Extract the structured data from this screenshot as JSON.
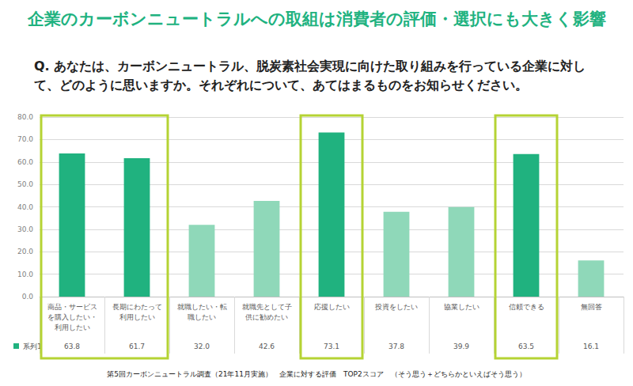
{
  "chart_data": {
    "type": "bar",
    "title": "企業のカーボンニュートラルへの取組は消費者の評価・選択にも大きく影響",
    "subtitle": "Q. あなたは、カーボンニュートラル、脱炭素社会実現に向けた取り組みを行っている企業に対して、どのように思いますか。それぞれについて、あてはまるものをお知らせください。",
    "annotations": [
      "第5回カーボンニュートラル調査（21年11月実施）　企業に対する評価　TOP2スコア　（そう思う＋どちらかといえばそう思う）"
    ],
    "categories": [
      "商品・サービスを購入したい・利用したい",
      "長期にわたって利用したい",
      "就職したい・転職したい",
      "就職先として子供に勧めたい",
      "応援したい",
      "投資をしたい",
      "協業したい",
      "信頼できる",
      "無回答"
    ],
    "series": [
      {
        "name": "系列1",
        "values": [
          63.8,
          61.7,
          32.0,
          42.6,
          73.1,
          37.8,
          39.9,
          63.5,
          16.1
        ],
        "value_labels": [
          "63.8",
          "61.7",
          "32.0",
          "42.6",
          "73.1",
          "37.8",
          "39.9",
          "63.5",
          "16.1"
        ],
        "colors": [
          "#20b27f",
          "#20b27f",
          "#8fd8b9",
          "#8fd8b9",
          "#20b27f",
          "#8fd8b9",
          "#8fd8b9",
          "#20b27f",
          "#8fd8b9"
        ]
      }
    ],
    "ylim": [
      0,
      80
    ],
    "yticks": [
      {
        "value": 0,
        "label": "0.0"
      },
      {
        "value": 10,
        "label": "10.0"
      },
      {
        "value": 20,
        "label": "20.0"
      },
      {
        "value": 30,
        "label": "30.0"
      },
      {
        "value": 40,
        "label": "40.0"
      },
      {
        "value": 50,
        "label": "50.0"
      },
      {
        "value": 60,
        "label": "60.0"
      },
      {
        "value": 70,
        "label": "70.0"
      },
      {
        "value": 80,
        "label": "80.0"
      }
    ],
    "grid": true,
    "legend": "bottom-left",
    "data_labels": false
  }
}
